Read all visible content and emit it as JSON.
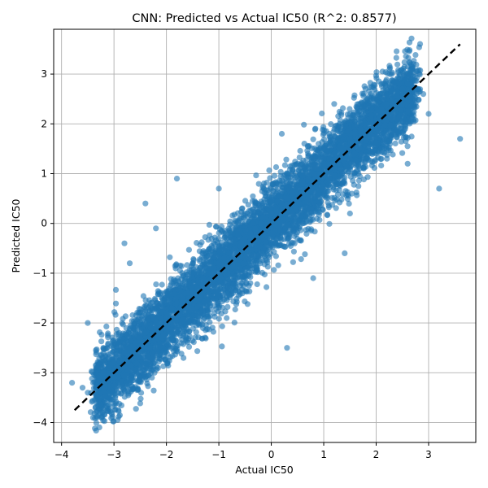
{
  "chart_data": {
    "type": "scatter",
    "title": "CNN: Predicted vs Actual IC50 (R^2: 0.8577)",
    "xlabel": "Actual IC50",
    "ylabel": "Predicted IC50",
    "xlim": [
      -4.15,
      3.9
    ],
    "ylim": [
      -4.4,
      3.9
    ],
    "xticks": [
      -4,
      -3,
      -2,
      -1,
      0,
      1,
      2,
      3
    ],
    "yticks": [
      -4,
      -3,
      -2,
      -1,
      0,
      1,
      2,
      3
    ],
    "xtick_labels": [
      "−4",
      "−3",
      "−2",
      "−1",
      "0",
      "1",
      "2",
      "3"
    ],
    "ytick_labels": [
      "−4",
      "−3",
      "−2",
      "−1",
      "0",
      "1",
      "2",
      "3"
    ],
    "grid": true,
    "legend": "none",
    "colors": {
      "points": "#1f77b4",
      "reference_line": "#000000",
      "grid": "#b0b0b0"
    },
    "reference_line": {
      "style": "dashed",
      "x": [
        -3.75,
        3.6
      ],
      "y": [
        -3.75,
        3.6
      ]
    },
    "series": [
      {
        "x": [
          -3.6,
          -3.5,
          -3.4,
          -3.3,
          -3.2,
          -3.3,
          -3.1,
          -3.0,
          -3.2,
          -2.9,
          -2.8,
          -3.0,
          -2.7,
          -2.6,
          -2.9,
          -2.5,
          -2.4,
          -2.6,
          -2.3,
          -2.2,
          -2.5,
          -2.1,
          -2.0,
          -2.3,
          -1.9,
          -1.8,
          -2.1,
          -1.7,
          -1.6,
          -1.9,
          -1.5,
          -1.4,
          -1.7,
          -1.3,
          -1.2,
          -1.5,
          -1.1,
          -1.0,
          -1.3,
          -0.9,
          -0.8,
          -1.1,
          -0.7,
          -0.6,
          -0.9,
          -0.5,
          -0.4,
          -0.7,
          -0.3,
          -0.2,
          -0.5,
          -0.1,
          0.0,
          -0.3,
          0.1,
          0.2,
          -0.1,
          0.3,
          0.4,
          0.1,
          0.5,
          0.6,
          0.3,
          0.7,
          0.8,
          0.5,
          0.9,
          1.0,
          0.7,
          1.1,
          1.2,
          0.9,
          1.3,
          1.4,
          1.1,
          1.5,
          1.6,
          1.3,
          1.7,
          1.8,
          1.5,
          1.9,
          2.0,
          1.7,
          2.1,
          2.2,
          1.9,
          2.3,
          2.4,
          2.1,
          2.5,
          2.6,
          2.3,
          2.7,
          2.8,
          2.5,
          3.0,
          3.6,
          -3.8,
          -3.5,
          -3.4,
          -2.4,
          -2.8,
          -2.7,
          -2.2,
          -1.8,
          -1.4,
          -0.6,
          0.2,
          0.3,
          0.8,
          1.4,
          1.2,
          2.9,
          3.2,
          2.0,
          0.6,
          -0.4,
          -1.0,
          1.5,
          2.6
        ],
        "y": [
          -3.3,
          -3.4,
          -3.2,
          -3.1,
          -3.0,
          -2.8,
          -2.9,
          -2.8,
          -2.5,
          -2.7,
          -2.6,
          -2.4,
          -2.5,
          -2.4,
          -2.2,
          -2.3,
          -2.2,
          -2.0,
          -2.1,
          -2.0,
          -1.8,
          -1.9,
          -1.8,
          -1.6,
          -1.7,
          -1.6,
          -1.4,
          -1.5,
          -1.4,
          -1.2,
          -1.3,
          -1.2,
          -1.0,
          -1.1,
          -1.0,
          -0.8,
          -0.9,
          -0.8,
          -0.6,
          -0.7,
          -0.6,
          -0.4,
          -0.5,
          -0.4,
          -0.2,
          -0.3,
          -0.2,
          0.0,
          -0.1,
          0.0,
          0.2,
          0.1,
          0.2,
          0.4,
          0.3,
          0.4,
          0.6,
          0.5,
          0.6,
          0.8,
          0.7,
          0.8,
          1.0,
          0.9,
          1.0,
          1.2,
          1.1,
          1.2,
          1.4,
          1.3,
          1.4,
          1.6,
          1.5,
          1.6,
          1.8,
          1.7,
          1.8,
          2.0,
          1.9,
          2.0,
          2.2,
          2.1,
          2.2,
          2.4,
          2.3,
          2.4,
          2.6,
          2.5,
          2.6,
          2.8,
          2.7,
          2.8,
          3.0,
          2.9,
          2.7,
          2.5,
          2.2,
          1.7,
          -3.2,
          -2.0,
          -3.9,
          0.4,
          -0.4,
          -0.8,
          -0.1,
          0.9,
          -1.3,
          -0.9,
          1.8,
          -2.5,
          -1.1,
          -0.6,
          2.4,
          2.6,
          0.7,
          2.4,
          0.0,
          -1.2,
          0.7,
          0.2,
          1.2
        ]
      }
    ]
  }
}
